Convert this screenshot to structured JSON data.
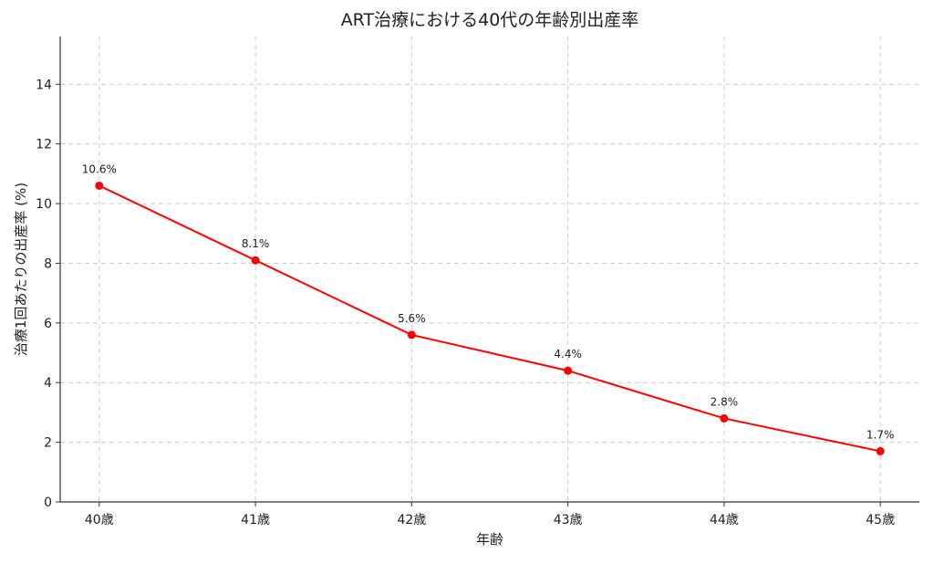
{
  "chart_data": {
    "type": "line",
    "title": "ART治療における40代の年齢別出産率",
    "xlabel": "年齢",
    "ylabel": "治療1回あたりの出産率 (%)",
    "categories": [
      "40歳",
      "41歳",
      "42歳",
      "43歳",
      "44歳",
      "45歳"
    ],
    "values": [
      10.6,
      8.1,
      5.6,
      4.4,
      2.8,
      1.7
    ],
    "data_labels": [
      "10.6%",
      "8.1%",
      "5.6%",
      "4.4%",
      "2.8%",
      "1.7%"
    ],
    "yticks": [
      0,
      2,
      4,
      6,
      8,
      10,
      12,
      14
    ],
    "ylim": [
      0,
      15.6
    ],
    "grid": true,
    "grid_style": "dashed",
    "marker": "circle",
    "colors": {
      "line": "#ff0000",
      "grid": "#cccccc",
      "axis": "#333333"
    }
  }
}
